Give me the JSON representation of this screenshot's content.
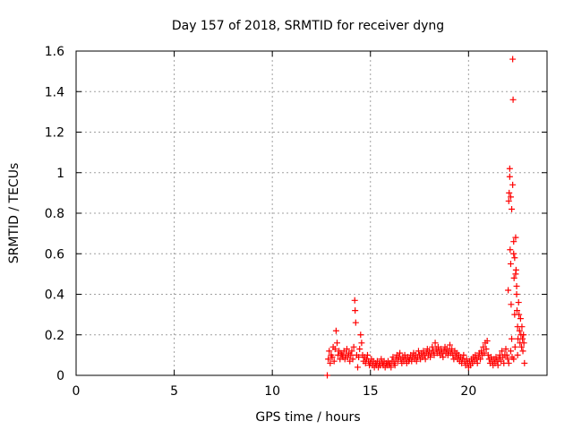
{
  "chart_data": {
    "type": "scatter",
    "title": "Day 157 of 2018, SRMTID for receiver dyng",
    "xlabel": "GPS time / hours",
    "ylabel": "SRMTID / TECUs",
    "xlim": [
      0,
      24
    ],
    "ylim": [
      0,
      1.6
    ],
    "xticks": [
      0,
      5,
      10,
      15,
      20
    ],
    "xtick_labels": [
      "0",
      "5",
      "10",
      "15",
      "20"
    ],
    "yticks": [
      0,
      0.2,
      0.4,
      0.6,
      0.8,
      1.0,
      1.2,
      1.4,
      1.6
    ],
    "ytick_labels": [
      "0",
      "0.2",
      "0.4",
      "0.6",
      "0.8",
      "1",
      "1.2",
      "1.4",
      "1.6"
    ],
    "grid": true,
    "marker": "+",
    "color": "#ff0000",
    "series": [
      {
        "name": "SRMTID",
        "points": [
          [
            12.8,
            0.0
          ],
          [
            12.85,
            0.08
          ],
          [
            12.9,
            0.12
          ],
          [
            12.95,
            0.06
          ],
          [
            13.0,
            0.1
          ],
          [
            13.05,
            0.09
          ],
          [
            13.1,
            0.14
          ],
          [
            13.15,
            0.07
          ],
          [
            13.2,
            0.13
          ],
          [
            13.25,
            0.22
          ],
          [
            13.3,
            0.16
          ],
          [
            13.35,
            0.1
          ],
          [
            13.4,
            0.12
          ],
          [
            13.45,
            0.08
          ],
          [
            13.5,
            0.11
          ],
          [
            13.55,
            0.1
          ],
          [
            13.6,
            0.09
          ],
          [
            13.65,
            0.12
          ],
          [
            13.7,
            0.08
          ],
          [
            13.75,
            0.1
          ],
          [
            13.8,
            0.13
          ],
          [
            13.85,
            0.09
          ],
          [
            13.9,
            0.11
          ],
          [
            13.95,
            0.07
          ],
          [
            14.0,
            0.1
          ],
          [
            14.05,
            0.12
          ],
          [
            14.1,
            0.08
          ],
          [
            14.15,
            0.14
          ],
          [
            14.2,
            0.37
          ],
          [
            14.22,
            0.32
          ],
          [
            14.25,
            0.26
          ],
          [
            14.3,
            0.1
          ],
          [
            14.35,
            0.04
          ],
          [
            14.4,
            0.09
          ],
          [
            14.45,
            0.13
          ],
          [
            14.5,
            0.2
          ],
          [
            14.55,
            0.16
          ],
          [
            14.6,
            0.1
          ],
          [
            14.65,
            0.07
          ],
          [
            14.7,
            0.09
          ],
          [
            14.75,
            0.06
          ],
          [
            14.8,
            0.08
          ],
          [
            14.85,
            0.1
          ],
          [
            14.9,
            0.07
          ],
          [
            14.95,
            0.05
          ],
          [
            15.0,
            0.06
          ],
          [
            15.05,
            0.08
          ],
          [
            15.1,
            0.05
          ],
          [
            15.15,
            0.07
          ],
          [
            15.2,
            0.04
          ],
          [
            15.25,
            0.06
          ],
          [
            15.3,
            0.05
          ],
          [
            15.35,
            0.07
          ],
          [
            15.4,
            0.04
          ],
          [
            15.45,
            0.06
          ],
          [
            15.5,
            0.05
          ],
          [
            15.55,
            0.08
          ],
          [
            15.6,
            0.06
          ],
          [
            15.65,
            0.05
          ],
          [
            15.7,
            0.07
          ],
          [
            15.75,
            0.04
          ],
          [
            15.8,
            0.06
          ],
          [
            15.85,
            0.05
          ],
          [
            15.9,
            0.07
          ],
          [
            15.95,
            0.05
          ],
          [
            16.0,
            0.06
          ],
          [
            16.05,
            0.04
          ],
          [
            16.1,
            0.07
          ],
          [
            16.15,
            0.09
          ],
          [
            16.2,
            0.06
          ],
          [
            16.25,
            0.05
          ],
          [
            16.3,
            0.08
          ],
          [
            16.35,
            0.1
          ],
          [
            16.4,
            0.07
          ],
          [
            16.45,
            0.09
          ],
          [
            16.5,
            0.11
          ],
          [
            16.55,
            0.08
          ],
          [
            16.6,
            0.06
          ],
          [
            16.65,
            0.09
          ],
          [
            16.7,
            0.07
          ],
          [
            16.75,
            0.1
          ],
          [
            16.8,
            0.08
          ],
          [
            16.85,
            0.06
          ],
          [
            16.9,
            0.09
          ],
          [
            16.95,
            0.07
          ],
          [
            17.0,
            0.08
          ],
          [
            17.05,
            0.1
          ],
          [
            17.1,
            0.07
          ],
          [
            17.15,
            0.09
          ],
          [
            17.2,
            0.11
          ],
          [
            17.25,
            0.08
          ],
          [
            17.3,
            0.1
          ],
          [
            17.35,
            0.07
          ],
          [
            17.4,
            0.09
          ],
          [
            17.45,
            0.12
          ],
          [
            17.5,
            0.1
          ],
          [
            17.55,
            0.08
          ],
          [
            17.6,
            0.11
          ],
          [
            17.65,
            0.09
          ],
          [
            17.7,
            0.12
          ],
          [
            17.75,
            0.1
          ],
          [
            17.8,
            0.08
          ],
          [
            17.85,
            0.11
          ],
          [
            17.9,
            0.13
          ],
          [
            17.95,
            0.1
          ],
          [
            18.0,
            0.12
          ],
          [
            18.05,
            0.09
          ],
          [
            18.1,
            0.11
          ],
          [
            18.15,
            0.14
          ],
          [
            18.2,
            0.12
          ],
          [
            18.25,
            0.1
          ],
          [
            18.3,
            0.16
          ],
          [
            18.35,
            0.13
          ],
          [
            18.4,
            0.11
          ],
          [
            18.45,
            0.14
          ],
          [
            18.5,
            0.12
          ],
          [
            18.55,
            0.1
          ],
          [
            18.6,
            0.13
          ],
          [
            18.65,
            0.11
          ],
          [
            18.7,
            0.09
          ],
          [
            18.75,
            0.12
          ],
          [
            18.8,
            0.14
          ],
          [
            18.85,
            0.11
          ],
          [
            18.9,
            0.13
          ],
          [
            18.95,
            0.1
          ],
          [
            19.0,
            0.12
          ],
          [
            19.05,
            0.15
          ],
          [
            19.1,
            0.11
          ],
          [
            19.15,
            0.13
          ],
          [
            19.2,
            0.1
          ],
          [
            19.25,
            0.08
          ],
          [
            19.3,
            0.12
          ],
          [
            19.35,
            0.09
          ],
          [
            19.4,
            0.11
          ],
          [
            19.45,
            0.08
          ],
          [
            19.5,
            0.1
          ],
          [
            19.55,
            0.07
          ],
          [
            19.6,
            0.09
          ],
          [
            19.65,
            0.06
          ],
          [
            19.7,
            0.08
          ],
          [
            19.75,
            0.1
          ],
          [
            19.8,
            0.07
          ],
          [
            19.85,
            0.05
          ],
          [
            19.9,
            0.08
          ],
          [
            19.95,
            0.06
          ],
          [
            20.0,
            0.04
          ],
          [
            20.05,
            0.07
          ],
          [
            20.1,
            0.05
          ],
          [
            20.15,
            0.08
          ],
          [
            20.2,
            0.06
          ],
          [
            20.25,
            0.09
          ],
          [
            20.3,
            0.07
          ],
          [
            20.35,
            0.1
          ],
          [
            20.4,
            0.08
          ],
          [
            20.45,
            0.06
          ],
          [
            20.5,
            0.09
          ],
          [
            20.55,
            0.11
          ],
          [
            20.6,
            0.08
          ],
          [
            20.65,
            0.12
          ],
          [
            20.7,
            0.1
          ],
          [
            20.75,
            0.14
          ],
          [
            20.8,
            0.11
          ],
          [
            20.85,
            0.16
          ],
          [
            20.9,
            0.13
          ],
          [
            20.95,
            0.17
          ],
          [
            21.0,
            0.1
          ],
          [
            21.05,
            0.08
          ],
          [
            21.1,
            0.06
          ],
          [
            21.15,
            0.09
          ],
          [
            21.2,
            0.07
          ],
          [
            21.25,
            0.05
          ],
          [
            21.3,
            0.08
          ],
          [
            21.35,
            0.06
          ],
          [
            21.4,
            0.09
          ],
          [
            21.45,
            0.07
          ],
          [
            21.5,
            0.05
          ],
          [
            21.55,
            0.08
          ],
          [
            21.6,
            0.1
          ],
          [
            21.65,
            0.07
          ],
          [
            21.7,
            0.12
          ],
          [
            21.75,
            0.09
          ],
          [
            21.8,
            0.06
          ],
          [
            21.85,
            0.1
          ],
          [
            21.9,
            0.13
          ],
          [
            21.95,
            0.1
          ],
          [
            22.0,
            0.08
          ],
          [
            22.02,
            0.42
          ],
          [
            22.05,
            0.86
          ],
          [
            22.07,
            0.9
          ],
          [
            22.1,
            1.02
          ],
          [
            22.12,
            0.62
          ],
          [
            22.15,
            0.55
          ],
          [
            22.17,
            0.35
          ],
          [
            22.2,
            0.18
          ],
          [
            22.22,
            0.09
          ],
          [
            22.25,
            1.56
          ],
          [
            22.27,
            1.36
          ],
          [
            22.3,
            0.66
          ],
          [
            22.32,
            0.48
          ],
          [
            22.35,
            0.3
          ],
          [
            22.37,
            0.14
          ],
          [
            22.4,
            0.68
          ],
          [
            22.42,
            0.52
          ],
          [
            22.45,
            0.4
          ],
          [
            22.47,
            0.32
          ],
          [
            22.5,
            0.24
          ],
          [
            22.52,
            0.18
          ],
          [
            22.55,
            0.36
          ],
          [
            22.57,
            0.3
          ],
          [
            22.6,
            0.22
          ],
          [
            22.62,
            0.16
          ],
          [
            22.65,
            0.28
          ],
          [
            22.67,
            0.2
          ],
          [
            22.7,
            0.14
          ],
          [
            22.72,
            0.24
          ],
          [
            22.75,
            0.18
          ],
          [
            22.77,
            0.12
          ],
          [
            22.8,
            0.2
          ],
          [
            22.82,
            0.16
          ],
          [
            22.85,
            0.06
          ],
          [
            22.1,
            0.98
          ],
          [
            22.15,
            0.88
          ],
          [
            22.2,
            0.82
          ],
          [
            22.25,
            0.94
          ],
          [
            22.3,
            0.6
          ],
          [
            22.35,
            0.58
          ],
          [
            22.4,
            0.5
          ],
          [
            22.45,
            0.44
          ],
          [
            22.05,
            0.06
          ],
          [
            22.15,
            0.12
          ],
          [
            22.3,
            0.08
          ],
          [
            22.5,
            0.1
          ]
        ]
      }
    ]
  }
}
